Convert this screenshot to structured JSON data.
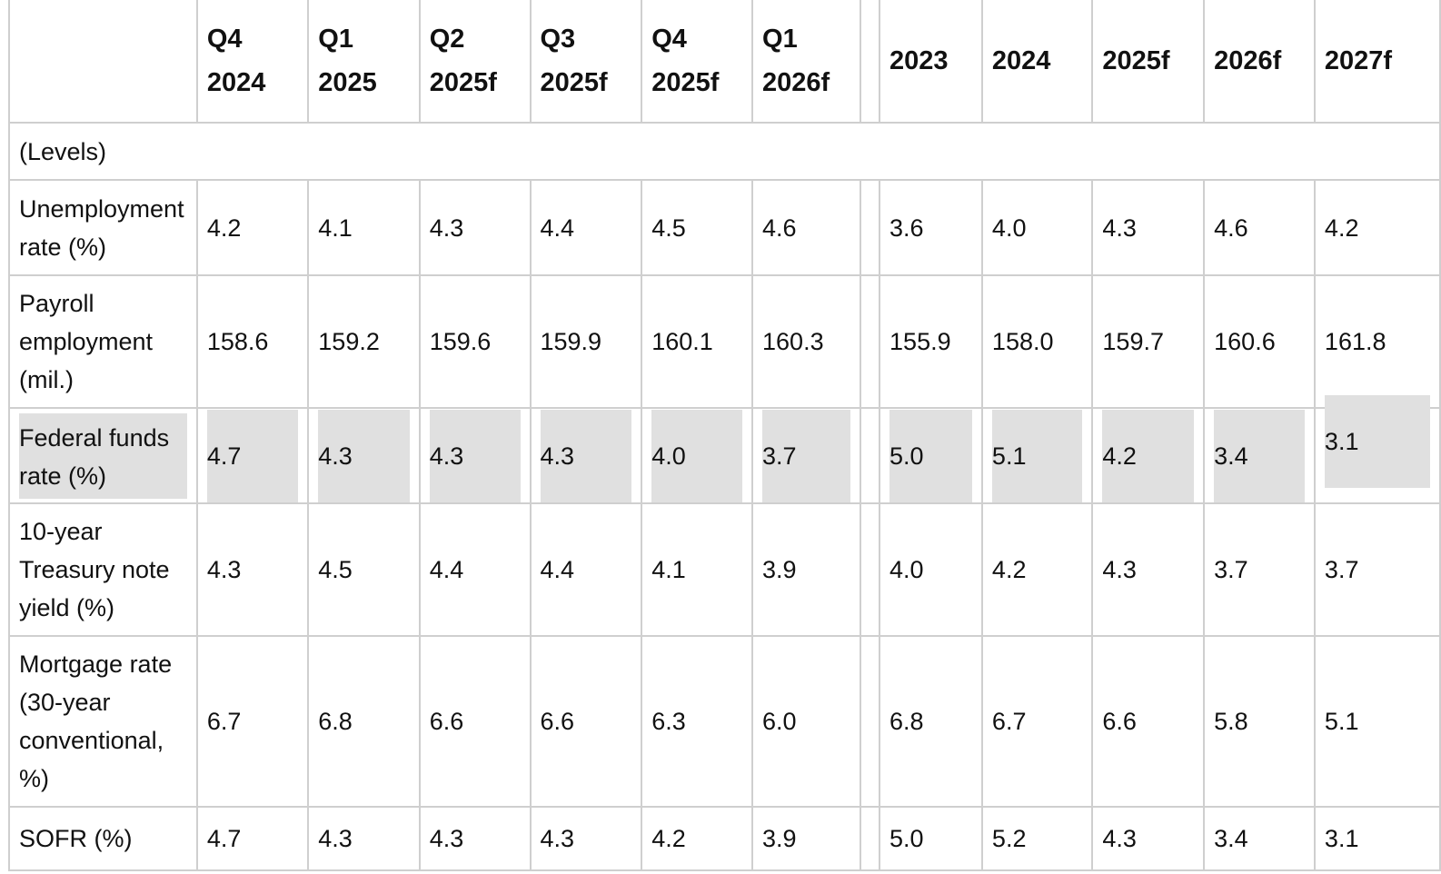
{
  "headers": [
    [
      "Q4",
      "2024"
    ],
    [
      "Q1",
      "2025"
    ],
    [
      "Q2",
      "2025f"
    ],
    [
      "Q3",
      "2025f"
    ],
    [
      "Q4",
      "2025f"
    ],
    [
      "Q1",
      "2026f"
    ],
    [
      "2023"
    ],
    [
      "2024"
    ],
    [
      "2025f"
    ],
    [
      "2026f"
    ],
    [
      "2027f"
    ]
  ],
  "section_label": "(Levels)",
  "rows": [
    {
      "label": [
        "Unemployment",
        "rate (%)"
      ],
      "values": [
        "4.2",
        "4.1",
        "4.3",
        "4.4",
        "4.5",
        "4.6",
        "3.6",
        "4.0",
        "4.3",
        "4.6",
        "4.2"
      ]
    },
    {
      "label": [
        "Payroll",
        "employment",
        "(mil.)"
      ],
      "values": [
        "158.6",
        "159.2",
        "159.6",
        "159.9",
        "160.1",
        "160.3",
        "155.9",
        "158.0",
        "159.7",
        "160.6",
        "161.8"
      ]
    },
    {
      "label": [
        "Federal funds",
        "rate (%)"
      ],
      "values": [
        "4.7",
        "4.3",
        "4.3",
        "4.3",
        "4.0",
        "3.7",
        "5.0",
        "5.1",
        "4.2",
        "3.4",
        "3.1"
      ]
    },
    {
      "label": [
        "10-year",
        "Treasury note",
        "yield (%)"
      ],
      "values": [
        "4.3",
        "4.5",
        "4.4",
        "4.4",
        "4.1",
        "3.9",
        "4.0",
        "4.2",
        "4.3",
        "3.7",
        "3.7"
      ]
    },
    {
      "label": [
        "Mortgage rate",
        "(30-year",
        "conventional,",
        "%)"
      ],
      "values": [
        "6.7",
        "6.8",
        "6.6",
        "6.6",
        "6.3",
        "6.0",
        "6.8",
        "6.7",
        "6.6",
        "5.8",
        "5.1"
      ]
    },
    {
      "label": [
        "SOFR (%)"
      ],
      "values": [
        "4.7",
        "4.3",
        "4.3",
        "4.3",
        "4.2",
        "3.9",
        "5.0",
        "5.2",
        "4.3",
        "3.4",
        "3.1"
      ]
    }
  ],
  "highlight_color": "#e0e0e0",
  "border_color": "#cfcfcf"
}
